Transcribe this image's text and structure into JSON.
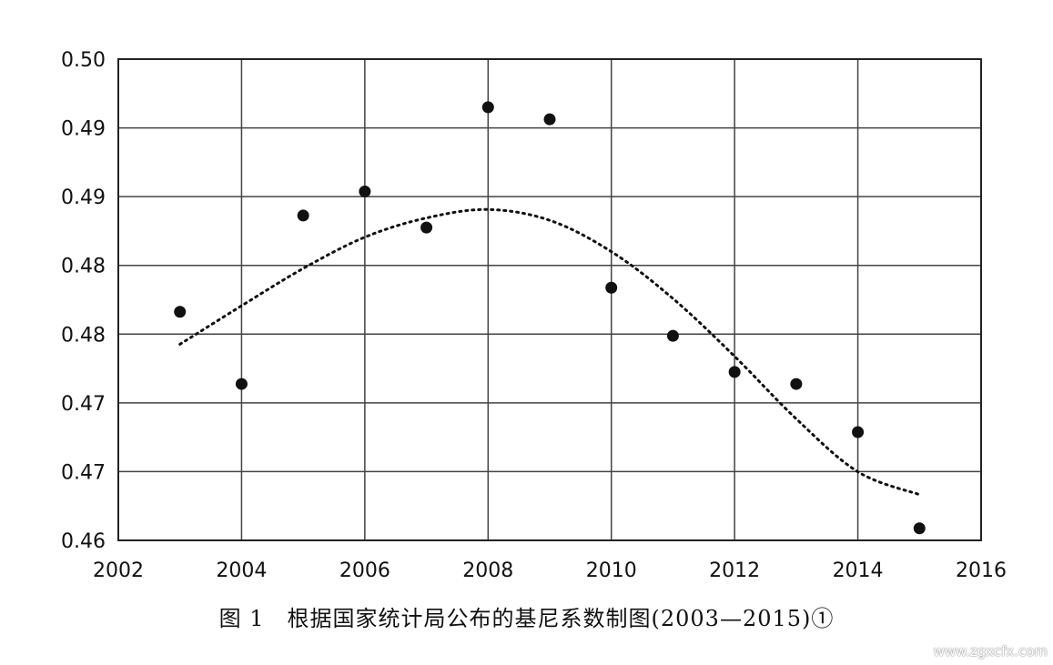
{
  "chart_data": {
    "type": "scatter",
    "title": "",
    "xlabel": "",
    "ylabel": "",
    "xlim": [
      2002,
      2016
    ],
    "ylim": [
      0.46,
      0.5
    ],
    "x_ticks": [
      "2002",
      "2004",
      "2006",
      "2008",
      "2010",
      "2012",
      "2014",
      "2016"
    ],
    "y_ticks": [
      "0.46",
      "0.47",
      "0.47",
      "0.48",
      "0.48",
      "0.49",
      "0.49",
      "0.50"
    ],
    "grid": true,
    "series": [
      {
        "kind": "points",
        "x": [
          2003,
          2004,
          2005,
          2006,
          2007,
          2008,
          2009,
          2010,
          2011,
          2012,
          2013,
          2014,
          2015
        ],
        "y": [
          0.479,
          0.473,
          0.487,
          0.489,
          0.486,
          0.496,
          0.495,
          0.481,
          0.477,
          0.474,
          0.473,
          0.469,
          0.461
        ]
      },
      {
        "kind": "trendline",
        "style": "dotted",
        "x": [
          2003,
          2004,
          2005,
          2006,
          2007,
          2008,
          2009,
          2010,
          2011,
          2012,
          2013,
          2014,
          2015
        ],
        "y": [
          0.4763,
          0.4795,
          0.4826,
          0.4852,
          0.4868,
          0.4875,
          0.4866,
          0.484,
          0.4801,
          0.4753,
          0.4701,
          0.4657,
          0.4638
        ]
      }
    ]
  },
  "caption": "图 1　根据国家统计局公布的基尼系数制图(2003—2015)①",
  "watermark": "www.zgxcfx.com"
}
